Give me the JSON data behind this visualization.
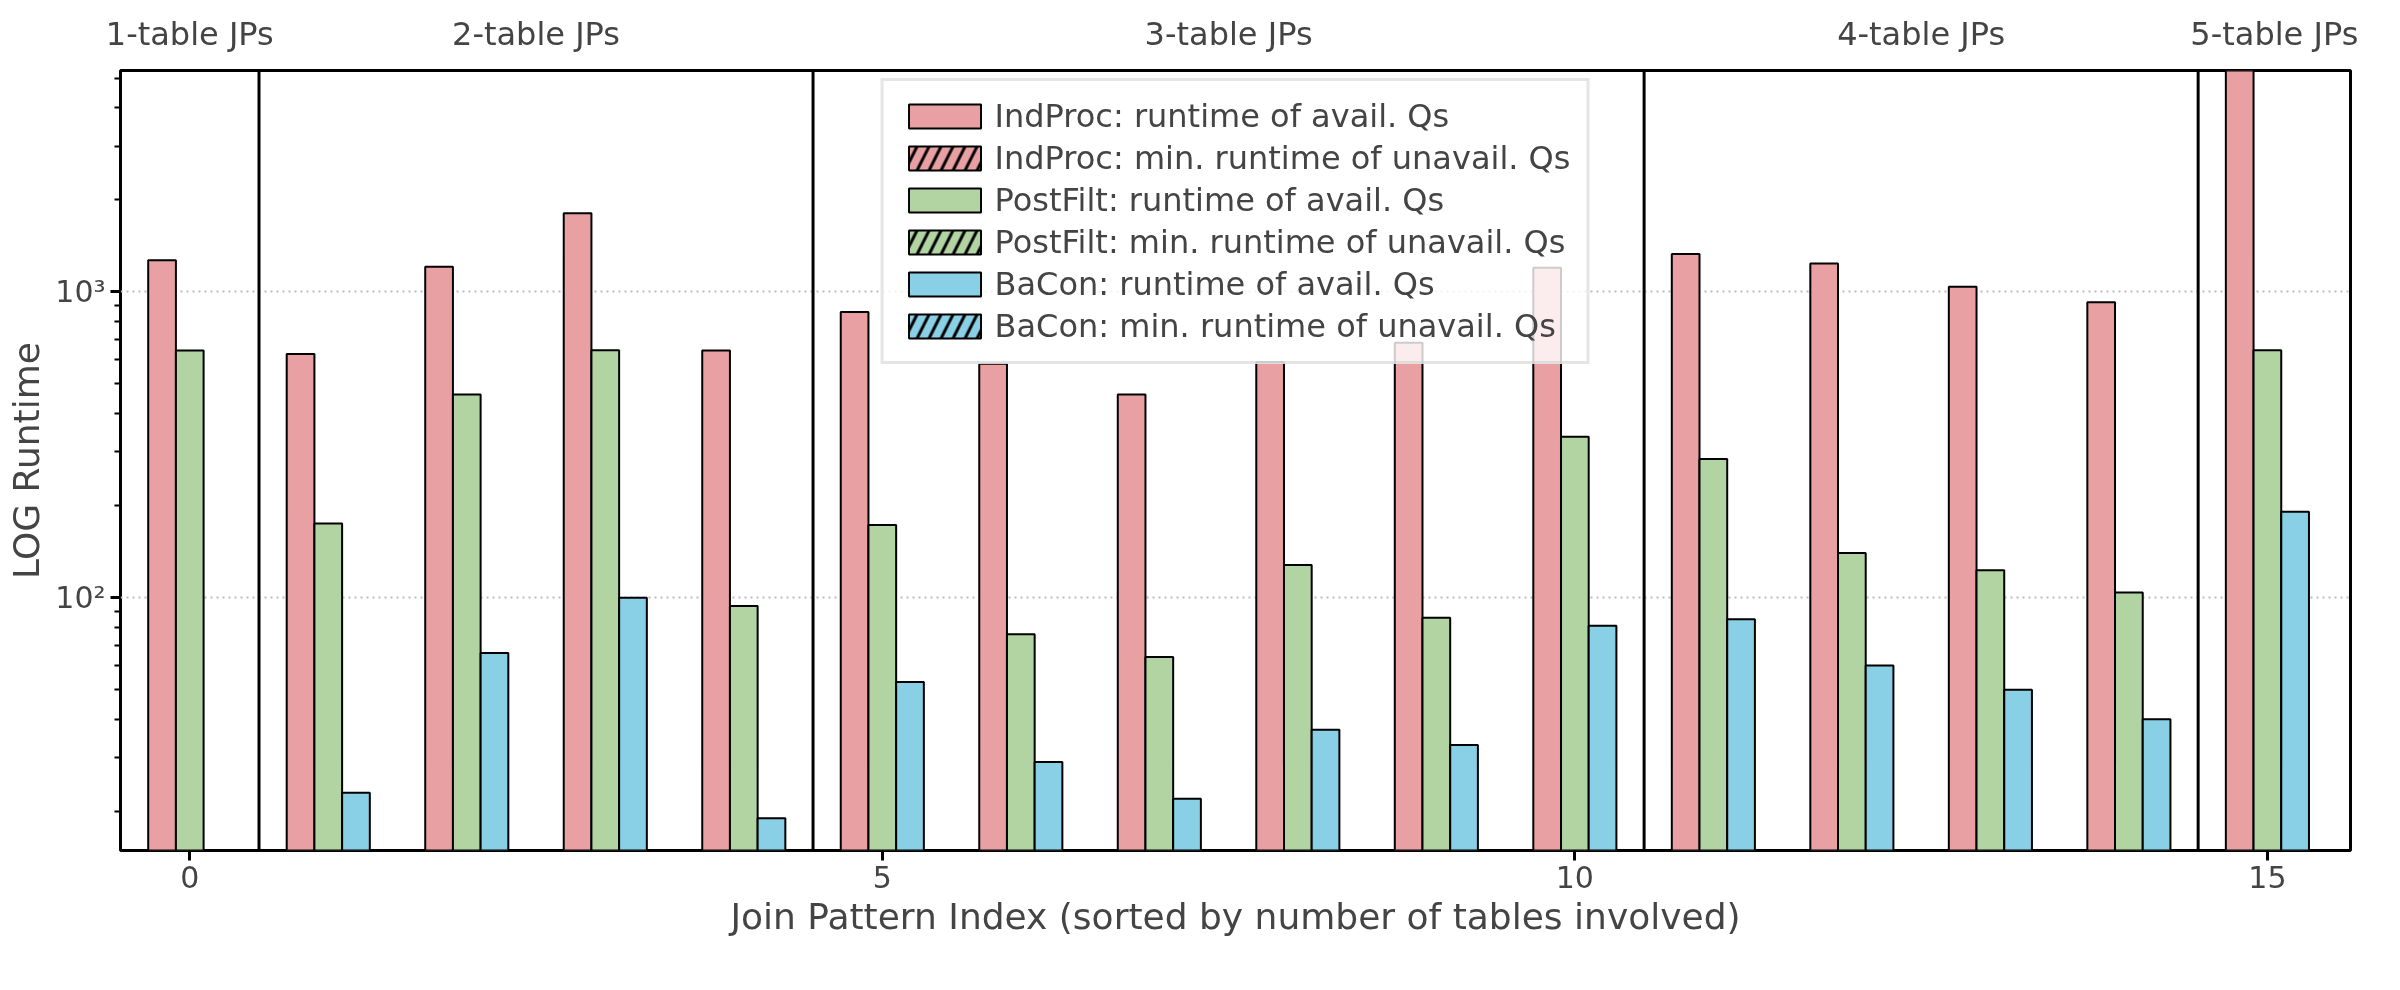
{
  "chart_data": {
    "type": "bar",
    "xlabel": "Join Pattern Index (sorted by number of tables involved)",
    "ylabel": "LOG Runtime",
    "x": [
      0,
      1,
      2,
      3,
      4,
      5,
      6,
      7,
      8,
      9,
      10,
      11,
      12,
      13,
      14,
      15
    ],
    "series": [
      {
        "name": "IndProc: runtime of avail. Qs",
        "color": "#e8a0a3",
        "values": [
          1270,
          627,
          1210,
          1810,
          644,
          860,
          582,
          462,
          590,
          682,
          1200,
          1330,
          1240,
          1040,
          925,
          5300
        ]
      },
      {
        "name": "IndProc: min. runtime of unavail. Qs",
        "color": "#e8a0a3",
        "values": [
          null,
          null,
          null,
          null,
          null,
          null,
          null,
          null,
          null,
          null,
          null,
          null,
          null,
          null,
          null,
          null
        ]
      },
      {
        "name": "PostFilt: runtime of avail. Qs",
        "color": "#b2d4a2",
        "values": [
          644,
          175,
          462,
          645,
          94,
          173,
          76,
          64,
          128,
          86,
          336,
          284,
          140,
          123,
          104,
          645
        ]
      },
      {
        "name": "PostFilt: min. runtime of unavail. Qs",
        "color": "#b2d4a2",
        "values": [
          null,
          null,
          null,
          null,
          null,
          null,
          null,
          null,
          null,
          null,
          null,
          null,
          null,
          null,
          null,
          null
        ]
      },
      {
        "name": "BaCon: runtime of avail. Qs",
        "color": "#89cfe6",
        "values": [
          null,
          23,
          66,
          100,
          19,
          53,
          29,
          22,
          37,
          33,
          81,
          85,
          60,
          50,
          40,
          191
        ]
      },
      {
        "name": "BaCon: min. runtime of unavail. Qs",
        "color": "#89cfe6",
        "values": [
          null,
          null,
          null,
          null,
          null,
          null,
          null,
          null,
          null,
          null,
          null,
          null,
          null,
          null,
          null,
          null
        ]
      }
    ],
    "log": "y",
    "xlim": [
      -0.5,
      15.6
    ],
    "ylim": [
      14.9,
      5300
    ],
    "xticks": [
      0,
      5,
      10,
      15
    ],
    "yticks": [
      {
        "value": 100,
        "label": "10²"
      },
      {
        "value": 1000,
        "label": "10³"
      }
    ],
    "grid": "y",
    "legend": "top",
    "ref_lines": [
      {
        "axis": "x",
        "value": 0.5,
        "color": "#000000"
      },
      {
        "axis": "x",
        "value": 4.5,
        "color": "#000000"
      },
      {
        "axis": "x",
        "value": 10.5,
        "color": "#000000"
      },
      {
        "axis": "x",
        "value": 14.5,
        "color": "#000000"
      }
    ],
    "annotations": [
      "1-table JPs",
      "2-table JPs",
      "3-table JPs",
      "4-table JPs",
      "5-table JPs"
    ]
  }
}
